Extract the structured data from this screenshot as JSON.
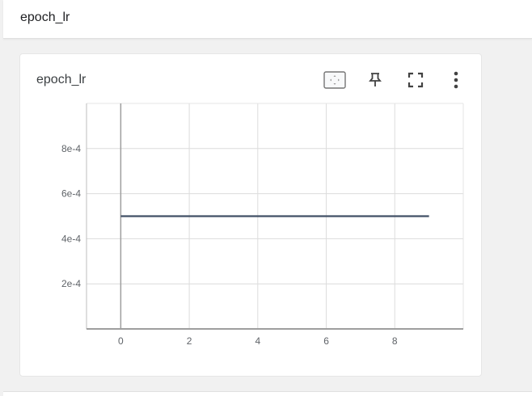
{
  "header": {
    "title": "epoch_lr"
  },
  "card": {
    "title": "epoch_lr",
    "tools": [
      {
        "name": "fit-domain-icon"
      },
      {
        "name": "pin-icon"
      },
      {
        "name": "fullscreen-icon"
      },
      {
        "name": "more-vert-icon"
      }
    ]
  },
  "chart_data": {
    "type": "line",
    "title": "",
    "xlabel": "",
    "ylabel": "",
    "xlim": [
      -1,
      10
    ],
    "ylim": [
      0,
      0.001
    ],
    "x_ticks": [
      0,
      2,
      4,
      6,
      8
    ],
    "x_tick_labels": [
      "0",
      "2",
      "4",
      "6",
      "8"
    ],
    "y_ticks": [
      0.0002,
      0.0004,
      0.0006,
      0.0008
    ],
    "y_tick_labels": [
      "2e-4",
      "4e-4",
      "6e-4",
      "8e-4"
    ],
    "grid": true,
    "series": [
      {
        "color": "#425066",
        "x": [
          0,
          1,
          2,
          3,
          4,
          5,
          6,
          7,
          8,
          9
        ],
        "y": [
          0.0005,
          0.0005,
          0.0005,
          0.0005,
          0.0005,
          0.0005,
          0.0005,
          0.0005,
          0.0005,
          0.0005
        ]
      }
    ]
  }
}
